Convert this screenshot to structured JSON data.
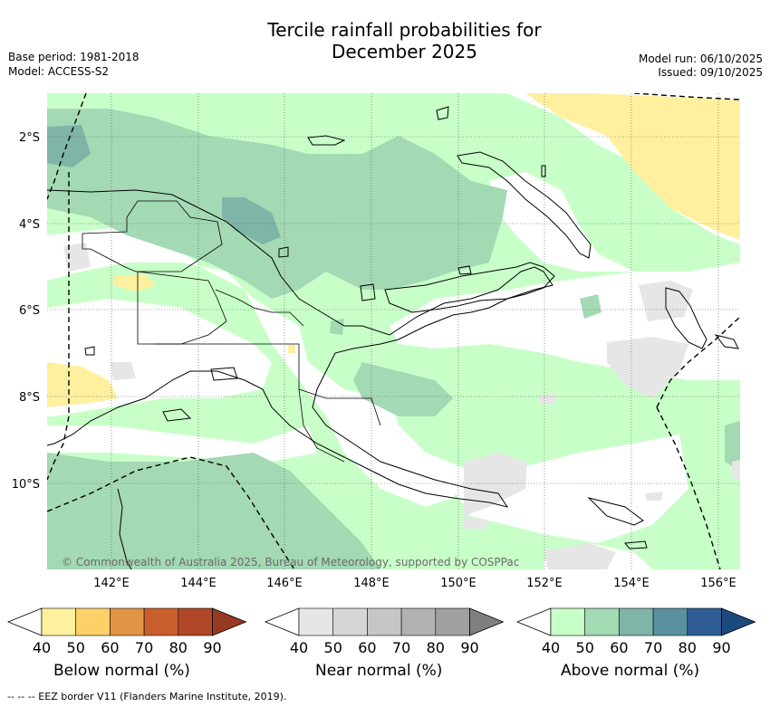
{
  "title_line1": "Tercile rainfall probabilities for",
  "title_line2": "December 2025",
  "base_period": "Base period: 1981-2018",
  "model": "Model: ACCESS-S2",
  "model_run": "Model run: 06/10/2025",
  "issued": "Issued: 09/10/2025",
  "copyright": "© Commonwealth of Australia 2025, Bureau of Meteorology, supported by COSPPac",
  "footnote": "-- -- -- EEZ border V11 (Flanders Marine Institute, 2019).",
  "lat_labels": [
    "2°S",
    "4°S",
    "6°S",
    "8°S",
    "10°S"
  ],
  "lon_labels": [
    "142°E",
    "144°E",
    "146°E",
    "148°E",
    "150°E",
    "152°E",
    "154°E",
    "156°E"
  ],
  "colorbars": [
    {
      "title": "Below normal (%)",
      "ticks": [
        "40",
        "50",
        "60",
        "70",
        "80",
        "90"
      ],
      "colors": [
        "#fff0a0",
        "#fdd168",
        "#e19444",
        "#ca5f2e",
        "#b04727",
        "#973a21"
      ]
    },
    {
      "title": "Near normal (%)",
      "ticks": [
        "40",
        "50",
        "60",
        "70",
        "80",
        "90"
      ],
      "colors": [
        "#e6e6e6",
        "#d6d6d6",
        "#c6c6c6",
        "#b2b2b2",
        "#a0a0a0",
        "#7f7f7f"
      ]
    },
    {
      "title": "Above normal (%)",
      "ticks": [
        "40",
        "50",
        "60",
        "70",
        "80",
        "90"
      ],
      "colors": [
        "#c8ffc8",
        "#a3d9b3",
        "#7fb5a8",
        "#5a91a0",
        "#2f5e96",
        "#1c4a7e"
      ]
    }
  ]
}
